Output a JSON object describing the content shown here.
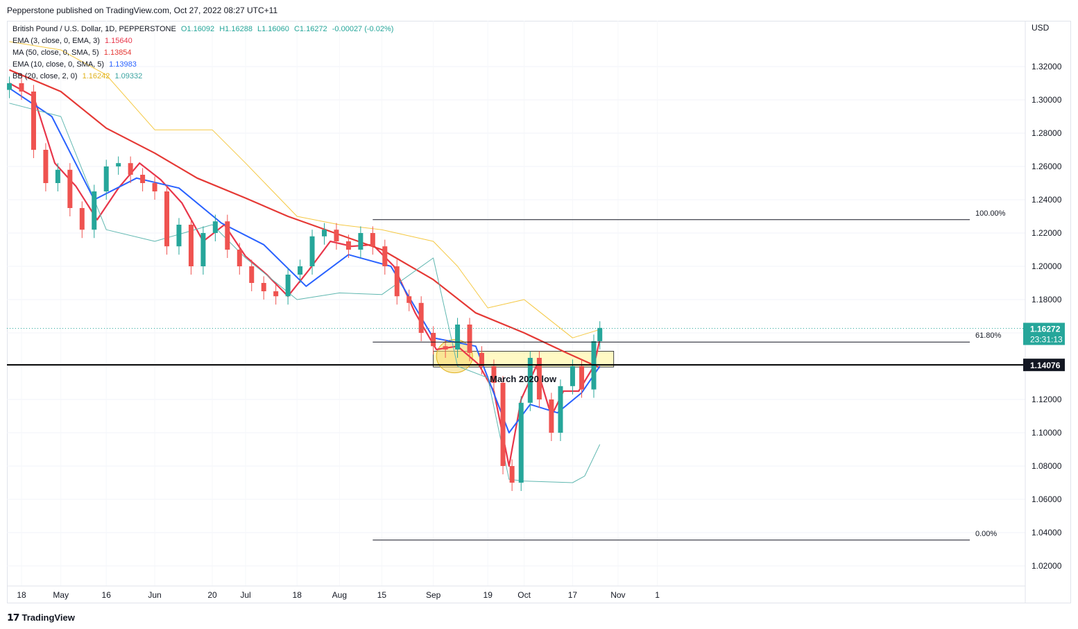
{
  "header": {
    "published": "Pepperstone published on TradingView.com, Oct 27, 2022 08:27 UTC+11"
  },
  "legend": {
    "symbol": "British Pound / U.S. Dollar, 1D, PEPPERSTONE",
    "ohlc": {
      "o": "O1.16092",
      "h": "H1.16288",
      "l": "L1.16060",
      "c": "C1.16272",
      "chg": "-0.00027 (-0.02%)"
    },
    "ema3": {
      "label": "EMA (3, close, 0, EMA, 3)",
      "value": "1.15640"
    },
    "ma50": {
      "label": "MA (50, close, 0, SMA, 5)",
      "value": "1.13854"
    },
    "ema10": {
      "label": "EMA (10, close, 0, SMA, 5)",
      "value": "1.13983"
    },
    "bb": {
      "label": "BB (20, close, 2, 0)",
      "upper": "1.16242",
      "lower": "1.09332"
    }
  },
  "footer": {
    "brand": "TradingView"
  },
  "colors": {
    "up": "#26a69a",
    "down": "#ef5350",
    "ema3": "#e8364a",
    "ma50": "#e53935",
    "ema10": "#2962ff",
    "bb_upper": "#f5c842",
    "bb_lower": "#5fb7b0",
    "zone": "#fff59d"
  },
  "chart_data": {
    "type": "line",
    "title": "British Pound / U.S. Dollar, 1D, PEPPERSTONE",
    "currency_label": "USD",
    "ylim": [
      1.01,
      1.335
    ],
    "y_ticks": [
      "1.32000",
      "1.30000",
      "1.28000",
      "1.26000",
      "1.24000",
      "1.22000",
      "1.20000",
      "1.18000",
      "1.16000",
      "1.14000",
      "1.12000",
      "1.10000",
      "1.08000",
      "1.06000",
      "1.04000",
      "1.02000"
    ],
    "x_ticks": [
      "18",
      "May",
      "16",
      "Jun",
      "20",
      "Jul",
      "18",
      "Aug",
      "15",
      "Sep",
      "19",
      "Oct",
      "17",
      "Nov",
      "1"
    ],
    "x_dates": [
      "2022-04-18",
      "2022-05-01",
      "2022-05-16",
      "2022-06-01",
      "2022-06-20",
      "2022-07-01",
      "2022-07-18",
      "2022-08-01",
      "2022-08-15",
      "2022-09-01",
      "2022-09-19",
      "2022-10-01",
      "2022-10-17",
      "2022-11-01",
      "2022-11-14"
    ],
    "price_labels": {
      "last": "1.16272",
      "countdown": "23:31:13",
      "level": "1.14076"
    },
    "series": [
      {
        "name": "EMA (3, close, 0, EMA, 3)",
        "x": [
          "2022-04-14",
          "2022-04-22",
          "2022-04-29",
          "2022-05-06",
          "2022-05-13",
          "2022-05-20",
          "2022-05-27",
          "2022-06-03",
          "2022-06-10",
          "2022-06-17",
          "2022-06-24",
          "2022-07-01",
          "2022-07-08",
          "2022-07-15",
          "2022-07-22",
          "2022-07-29",
          "2022-08-05",
          "2022-08-12",
          "2022-08-19",
          "2022-08-26",
          "2022-09-02",
          "2022-09-09",
          "2022-09-16",
          "2022-09-21",
          "2022-09-26",
          "2022-09-30",
          "2022-10-05",
          "2022-10-10",
          "2022-10-14",
          "2022-10-19",
          "2022-10-24",
          "2022-10-26"
        ],
        "values": [
          1.31,
          1.302,
          1.262,
          1.248,
          1.228,
          1.247,
          1.262,
          1.252,
          1.238,
          1.215,
          1.225,
          1.206,
          1.195,
          1.182,
          1.198,
          1.215,
          1.212,
          1.213,
          1.2,
          1.172,
          1.15,
          1.152,
          1.141,
          1.125,
          1.08,
          1.12,
          1.14,
          1.11,
          1.125,
          1.125,
          1.14,
          1.156
        ]
      },
      {
        "name": "MA (50, close, 0, SMA, 5)",
        "x": [
          "2022-04-14",
          "2022-05-01",
          "2022-05-16",
          "2022-06-01",
          "2022-06-15",
          "2022-07-01",
          "2022-07-15",
          "2022-08-01",
          "2022-08-15",
          "2022-09-01",
          "2022-09-15",
          "2022-10-01",
          "2022-10-15",
          "2022-10-26"
        ],
        "values": [
          1.318,
          1.305,
          1.283,
          1.268,
          1.253,
          1.241,
          1.23,
          1.219,
          1.21,
          1.192,
          1.172,
          1.16,
          1.148,
          1.139
        ]
      },
      {
        "name": "EMA (10, close, 0, SMA, 5)",
        "x": [
          "2022-04-14",
          "2022-04-28",
          "2022-05-12",
          "2022-05-26",
          "2022-06-09",
          "2022-06-23",
          "2022-07-07",
          "2022-07-21",
          "2022-08-04",
          "2022-08-18",
          "2022-09-01",
          "2022-09-15",
          "2022-09-26",
          "2022-10-03",
          "2022-10-12",
          "2022-10-20",
          "2022-10-26"
        ],
        "values": [
          1.307,
          1.29,
          1.24,
          1.253,
          1.247,
          1.226,
          1.213,
          1.188,
          1.207,
          1.2,
          1.157,
          1.152,
          1.1,
          1.117,
          1.112,
          1.124,
          1.14
        ]
      },
      {
        "name": "BB upper",
        "x": [
          "2022-04-14",
          "2022-05-01",
          "2022-05-16",
          "2022-06-01",
          "2022-06-20",
          "2022-07-01",
          "2022-07-18",
          "2022-08-01",
          "2022-08-15",
          "2022-09-01",
          "2022-09-09",
          "2022-09-19",
          "2022-10-01",
          "2022-10-17",
          "2022-10-26"
        ],
        "values": [
          1.335,
          1.33,
          1.315,
          1.282,
          1.282,
          1.262,
          1.23,
          1.225,
          1.222,
          1.215,
          1.2,
          1.175,
          1.18,
          1.157,
          1.162
        ]
      },
      {
        "name": "BB lower",
        "x": [
          "2022-04-14",
          "2022-05-01",
          "2022-05-16",
          "2022-06-01",
          "2022-06-20",
          "2022-07-01",
          "2022-07-18",
          "2022-08-01",
          "2022-08-15",
          "2022-09-01",
          "2022-09-09",
          "2022-09-19",
          "2022-09-26",
          "2022-10-01",
          "2022-10-17",
          "2022-10-21",
          "2022-10-26"
        ],
        "values": [
          1.298,
          1.29,
          1.222,
          1.215,
          1.225,
          1.205,
          1.18,
          1.184,
          1.183,
          1.205,
          1.14,
          1.133,
          1.072,
          1.071,
          1.07,
          1.074,
          1.093
        ]
      }
    ],
    "candles": {
      "dates": [
        "2022-04-14",
        "2022-04-18",
        "2022-04-22",
        "2022-04-26",
        "2022-04-30",
        "2022-05-04",
        "2022-05-08",
        "2022-05-12",
        "2022-05-16",
        "2022-05-20",
        "2022-05-24",
        "2022-05-28",
        "2022-06-01",
        "2022-06-05",
        "2022-06-09",
        "2022-06-13",
        "2022-06-17",
        "2022-06-21",
        "2022-06-25",
        "2022-06-29",
        "2022-07-03",
        "2022-07-07",
        "2022-07-11",
        "2022-07-15",
        "2022-07-19",
        "2022-07-23",
        "2022-07-27",
        "2022-07-31",
        "2022-08-04",
        "2022-08-08",
        "2022-08-12",
        "2022-08-16",
        "2022-08-20",
        "2022-08-24",
        "2022-08-28",
        "2022-09-01",
        "2022-09-05",
        "2022-09-09",
        "2022-09-13",
        "2022-09-17",
        "2022-09-21",
        "2022-09-24",
        "2022-09-27",
        "2022-09-30",
        "2022-10-03",
        "2022-10-06",
        "2022-10-10",
        "2022-10-13",
        "2022-10-17",
        "2022-10-20",
        "2022-10-24",
        "2022-10-26"
      ],
      "close": [
        1.31,
        1.305,
        1.27,
        1.25,
        1.258,
        1.235,
        1.222,
        1.245,
        1.26,
        1.262,
        1.255,
        1.25,
        1.245,
        1.212,
        1.225,
        1.2,
        1.22,
        1.227,
        1.21,
        1.2,
        1.19,
        1.185,
        1.182,
        1.195,
        1.2,
        1.218,
        1.222,
        1.215,
        1.21,
        1.22,
        1.212,
        1.2,
        1.182,
        1.178,
        1.16,
        1.152,
        1.15,
        1.165,
        1.148,
        1.14,
        1.13,
        1.08,
        1.07,
        1.118,
        1.145,
        1.12,
        1.1,
        1.128,
        1.14,
        1.126,
        1.155,
        1.163
      ]
    },
    "annotations": {
      "fib_100": {
        "label": "100.00%",
        "price": 1.228
      },
      "fib_618": {
        "label": "61.80%",
        "price": 1.1545
      },
      "fib_0": {
        "label": "0.00%",
        "price": 1.0355
      },
      "support": {
        "label": "March 2020 low",
        "price": 1.14076
      },
      "zone": {
        "top": 1.149,
        "bottom": 1.1395
      }
    }
  }
}
